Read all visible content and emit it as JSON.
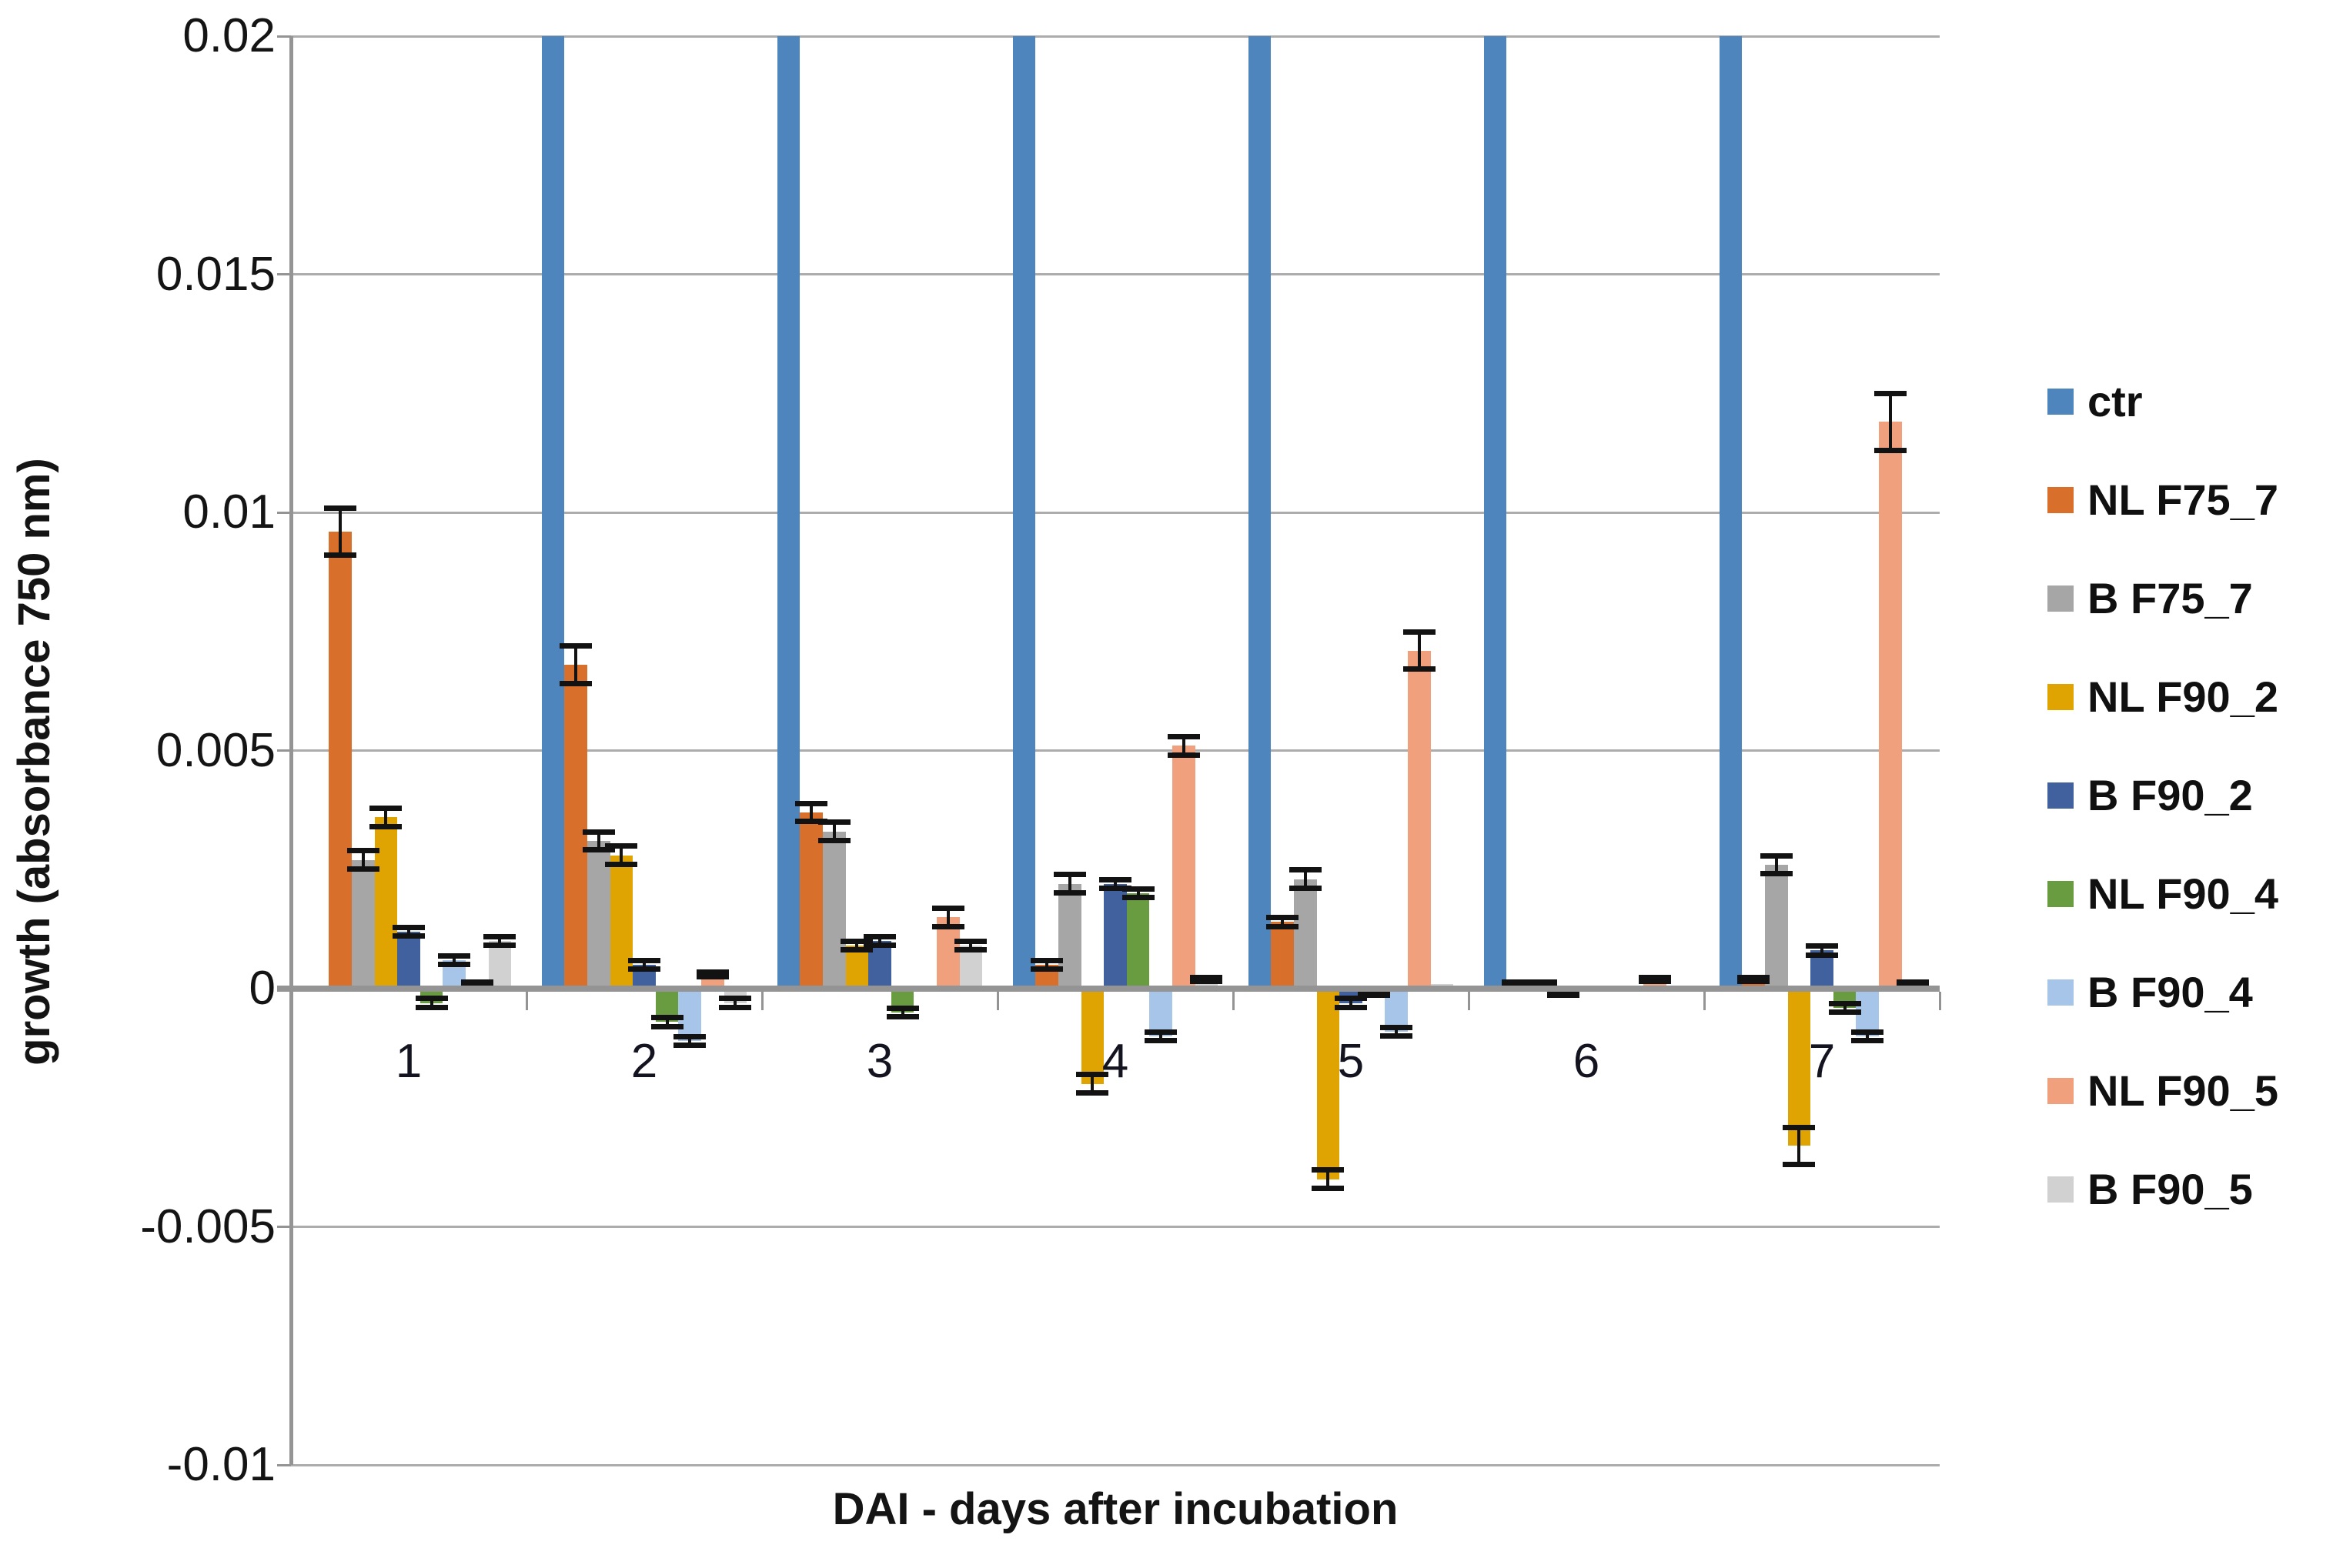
{
  "chart_data": {
    "type": "bar",
    "title": "",
    "xlabel": "DAI - days after incubation",
    "ylabel": "growth (absorbance 750 nm)",
    "ylim": [
      -0.01,
      0.02
    ],
    "ytick_labels": [
      "0.02",
      "0.015",
      "0.01",
      "0.005",
      "0",
      "-0.005",
      "-0.01"
    ],
    "ytick_values": [
      0.02,
      0.015,
      0.01,
      0.005,
      0,
      -0.005,
      -0.01
    ],
    "categories": [
      "1",
      "2",
      "3",
      "4",
      "5",
      "6",
      "7"
    ],
    "grid": true,
    "legend_position": "right",
    "error_bars": true,
    "clipped_note": "ctr bars for days 2-7 exceed the y-axis maximum and are clipped at 0.02; day 1 ctr bar is not visible (~0)",
    "series": [
      {
        "name": "ctr",
        "color": "#4E85BD",
        "values": [
          0,
          0.02,
          0.02,
          0.02,
          0.02,
          0.02,
          0.02
        ],
        "clipped": [
          false,
          true,
          true,
          true,
          true,
          true,
          true
        ],
        "errors": [
          0,
          0,
          0,
          0,
          0,
          0,
          0
        ]
      },
      {
        "name": "NL F75_7",
        "color": "#D8702B",
        "values": [
          0.0096,
          0.0068,
          0.0037,
          0.0005,
          0.0014,
          0.0001,
          0.0002
        ],
        "errors": [
          0.0005,
          0.0004,
          0.0002,
          0.0001,
          0.0001,
          5e-05,
          5e-05
        ]
      },
      {
        "name": "B F75_7",
        "color": "#A6A6A6",
        "values": [
          0.0027,
          0.0031,
          0.0033,
          0.0022,
          0.0023,
          0.0001,
          0.0026
        ],
        "errors": [
          0.0002,
          0.0002,
          0.0002,
          0.0002,
          0.0002,
          5e-05,
          0.0002
        ]
      },
      {
        "name": "NL F90_2",
        "color": "#DFA402",
        "values": [
          0.0036,
          0.0028,
          0.0009,
          -0.002,
          -0.004,
          -0.0001,
          -0.0033
        ],
        "errors": [
          0.0002,
          0.0002,
          0.0001,
          0.0002,
          0.0002,
          5e-05,
          0.0004
        ]
      },
      {
        "name": "B F90_2",
        "color": "#40619D",
        "values": [
          0.0012,
          0.0005,
          0.001,
          0.0022,
          -0.0003,
          0,
          0.0008
        ],
        "errors": [
          0.0001,
          0.0001,
          0.0001,
          0.0001,
          0.0001,
          0,
          0.0001
        ]
      },
      {
        "name": "NL F90_4",
        "color": "#699B41",
        "values": [
          -0.0003,
          -0.0007,
          -0.0005,
          0.002,
          -0.0001,
          0,
          -0.0004
        ],
        "errors": [
          0.0001,
          0.0001,
          0.0001,
          0.0001,
          5e-05,
          0,
          0.0001
        ]
      },
      {
        "name": "B F90_4",
        "color": "#A6C5E8",
        "values": [
          0.0006,
          -0.0011,
          0,
          -0.001,
          -0.0009,
          0,
          -0.001
        ],
        "errors": [
          0.0001,
          0.0001,
          0,
          0.0001,
          0.0001,
          0,
          0.0001
        ]
      },
      {
        "name": "NL F90_5",
        "color": "#F1A07D",
        "values": [
          0.0001,
          0.0003,
          0.0015,
          0.0051,
          0.0071,
          0.0002,
          0.0119
        ],
        "errors": [
          5e-05,
          5e-05,
          0.0002,
          0.0002,
          0.0004,
          5e-05,
          0.0006
        ]
      },
      {
        "name": "B F90_5",
        "color": "#D1D1D1",
        "values": [
          0.001,
          -0.0003,
          0.0009,
          0.0002,
          0.0001,
          0,
          0.0001
        ],
        "errors": [
          0.0001,
          0.0001,
          0.0001,
          5e-05,
          0,
          0,
          5e-05
        ]
      }
    ]
  }
}
